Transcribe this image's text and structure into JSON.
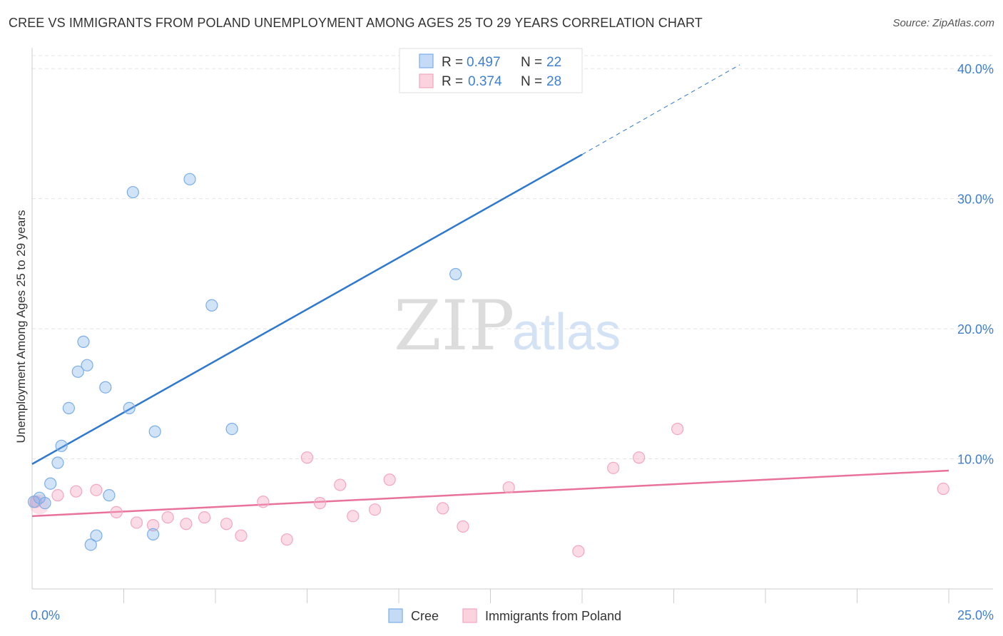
{
  "header": {
    "title": "CREE VS IMMIGRANTS FROM POLAND UNEMPLOYMENT AMONG AGES 25 TO 29 YEARS CORRELATION CHART",
    "source": "Source: ZipAtlas.com"
  },
  "watermark": {
    "zip": "ZIP",
    "atlas": "atlas"
  },
  "legend": {
    "rows": [
      {
        "r_label": "R = ",
        "r_value": "0.497",
        "n_label": "N = ",
        "n_value": "22"
      },
      {
        "r_label": "R = ",
        "r_value": "0.374",
        "n_label": "N = ",
        "n_value": "28"
      }
    ]
  },
  "chart_data": {
    "type": "scatter",
    "title": "CREE VS IMMIGRANTS FROM POLAND UNEMPLOYMENT AMONG AGES 25 TO 29 YEARS CORRELATION CHART",
    "xlabel": "",
    "ylabel": "Unemployment Among Ages 25 to 29 years",
    "xlim": [
      0,
      25
    ],
    "ylim": [
      0,
      41
    ],
    "x_tick_labels": [
      "0.0%",
      "25.0%"
    ],
    "y_ticks": [
      10,
      20,
      30,
      40
    ],
    "y_tick_labels": [
      "10.0%",
      "20.0%",
      "30.0%",
      "40.0%"
    ],
    "grid": true,
    "legend_position": "top-center",
    "colors": {
      "cree": "#7aaee8",
      "cree_line": "#2f78d0",
      "poland": "#f4a6bf",
      "poland_line": "#e8729b"
    },
    "series": [
      {
        "name": "Cree",
        "points": [
          {
            "x": 0.05,
            "y": 6.7
          },
          {
            "x": 0.2,
            "y": 7.0
          },
          {
            "x": 0.35,
            "y": 6.6
          },
          {
            "x": 0.5,
            "y": 8.1
          },
          {
            "x": 0.7,
            "y": 9.7
          },
          {
            "x": 0.8,
            "y": 11.0
          },
          {
            "x": 1.0,
            "y": 13.9
          },
          {
            "x": 1.25,
            "y": 16.7
          },
          {
            "x": 1.4,
            "y": 19.0
          },
          {
            "x": 1.5,
            "y": 17.2
          },
          {
            "x": 1.6,
            "y": 3.4
          },
          {
            "x": 1.75,
            "y": 4.1
          },
          {
            "x": 2.0,
            "y": 15.5
          },
          {
            "x": 2.1,
            "y": 7.2
          },
          {
            "x": 2.65,
            "y": 13.9
          },
          {
            "x": 2.75,
            "y": 30.5
          },
          {
            "x": 3.3,
            "y": 4.2
          },
          {
            "x": 3.35,
            "y": 12.1
          },
          {
            "x": 4.3,
            "y": 31.5
          },
          {
            "x": 4.9,
            "y": 21.8
          },
          {
            "x": 5.45,
            "y": 12.3
          },
          {
            "x": 11.55,
            "y": 24.2
          }
        ],
        "trend": {
          "x_start": 0,
          "y_start": 9.6,
          "x_end": 15.0,
          "y_end": 33.4,
          "dashed_to_x": 19.3,
          "dashed_to_y": 40.3
        }
      },
      {
        "name": "Immigrants from Poland",
        "points": [
          {
            "x": 0.1,
            "y": 6.7
          },
          {
            "x": 0.7,
            "y": 7.2
          },
          {
            "x": 1.2,
            "y": 7.5
          },
          {
            "x": 1.75,
            "y": 7.6
          },
          {
            "x": 2.3,
            "y": 5.9
          },
          {
            "x": 2.85,
            "y": 5.1
          },
          {
            "x": 3.3,
            "y": 4.9
          },
          {
            "x": 3.7,
            "y": 5.5
          },
          {
            "x": 4.2,
            "y": 5.0
          },
          {
            "x": 4.7,
            "y": 5.5
          },
          {
            "x": 5.3,
            "y": 5.0
          },
          {
            "x": 5.7,
            "y": 4.1
          },
          {
            "x": 6.3,
            "y": 6.7
          },
          {
            "x": 6.95,
            "y": 3.8
          },
          {
            "x": 7.5,
            "y": 10.1
          },
          {
            "x": 7.85,
            "y": 6.6
          },
          {
            "x": 8.4,
            "y": 8.0
          },
          {
            "x": 8.75,
            "y": 5.6
          },
          {
            "x": 9.35,
            "y": 6.1
          },
          {
            "x": 9.75,
            "y": 8.4
          },
          {
            "x": 11.2,
            "y": 6.2
          },
          {
            "x": 11.75,
            "y": 4.8
          },
          {
            "x": 13.0,
            "y": 7.8
          },
          {
            "x": 14.9,
            "y": 2.9
          },
          {
            "x": 15.85,
            "y": 9.3
          },
          {
            "x": 16.55,
            "y": 10.1
          },
          {
            "x": 17.6,
            "y": 12.3
          },
          {
            "x": 24.85,
            "y": 7.7
          }
        ],
        "trend": {
          "x_start": 0,
          "y_start": 5.6,
          "x_end": 25.0,
          "y_end": 9.1
        }
      }
    ]
  },
  "bottom_legend": {
    "items": [
      {
        "label": "Cree"
      },
      {
        "label": "Immigrants from Poland"
      }
    ]
  }
}
